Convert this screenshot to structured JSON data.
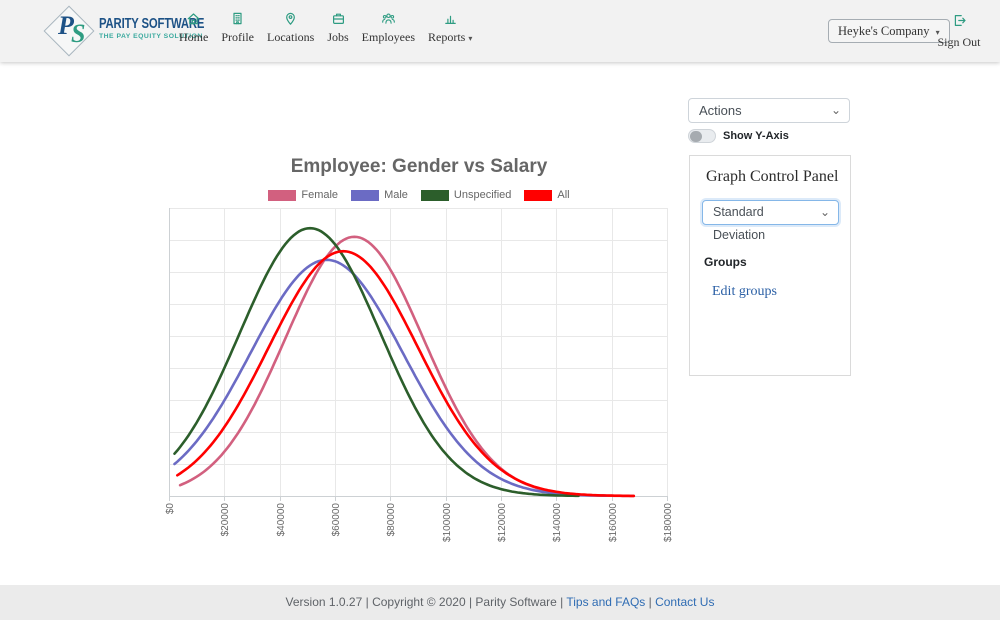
{
  "header": {
    "logo": {
      "monogram_p": "P",
      "monogram_s": "S",
      "name": "PARITY SOFTWARE",
      "tagline": "THE PAY EQUITY SOLUTION"
    },
    "nav": [
      {
        "label": "Home"
      },
      {
        "label": "Profile"
      },
      {
        "label": "Locations"
      },
      {
        "label": "Jobs"
      },
      {
        "label": "Employees"
      },
      {
        "label": "Reports",
        "has_dropdown": true
      }
    ],
    "company_selector": {
      "label": "Heyke's Company",
      "caret": "▾"
    },
    "sign_out": {
      "label": "Sign Out"
    }
  },
  "controls": {
    "actions_select": {
      "value": "Actions"
    },
    "show_y_axis": {
      "label": "Show Y-Axis",
      "enabled": false
    },
    "panel": {
      "title": "Graph Control Panel",
      "measure_select": {
        "value": "Standard Deviation"
      },
      "groups_label": "Groups",
      "edit_groups_link": "Edit groups"
    }
  },
  "chart_data": {
    "type": "line",
    "title": "Employee: Gender vs Salary",
    "legend_position": "top",
    "grid": true,
    "x_axis": {
      "min": 0,
      "max": 180000,
      "tick_step": 20000,
      "tick_labels": [
        "$0",
        "$20000",
        "$40000",
        "$60000",
        "$80000",
        "$100000",
        "$120000",
        "$140000",
        "$160000",
        "$180000"
      ],
      "tick_rotation_deg": -90
    },
    "y_axis": {
      "visible": false
    },
    "series": [
      {
        "name": "Female",
        "color": "#d2607f",
        "shape": "normal_curve",
        "mean": 67000,
        "std_dev": 25000,
        "peak_rel": 0.9,
        "x_start": 4000,
        "x_end": 168000
      },
      {
        "name": "Male",
        "color": "#6b6bc4",
        "shape": "normal_curve",
        "mean": 57000,
        "std_dev": 27500,
        "peak_rel": 0.82,
        "x_start": 2000,
        "x_end": 158000
      },
      {
        "name": "Unspecified",
        "color": "#2c5e2b",
        "shape": "normal_curve",
        "mean": 51000,
        "std_dev": 25500,
        "peak_rel": 0.93,
        "x_start": 2000,
        "x_end": 148000
      },
      {
        "name": "All",
        "color": "#ff0000",
        "shape": "normal_curve",
        "mean": 63000,
        "std_dev": 27000,
        "peak_rel": 0.85,
        "x_start": 3000,
        "x_end": 168000
      }
    ],
    "grid_color": "#e8e8e8",
    "axis_color": "#cdd1d4",
    "h_divisions": 9
  },
  "footer": {
    "version": "Version 1.0.27",
    "copyright": "Copyright © 2020",
    "company": "Parity Software",
    "links": [
      "Tips and FAQs",
      "Contact Us"
    ],
    "separator": " | "
  }
}
